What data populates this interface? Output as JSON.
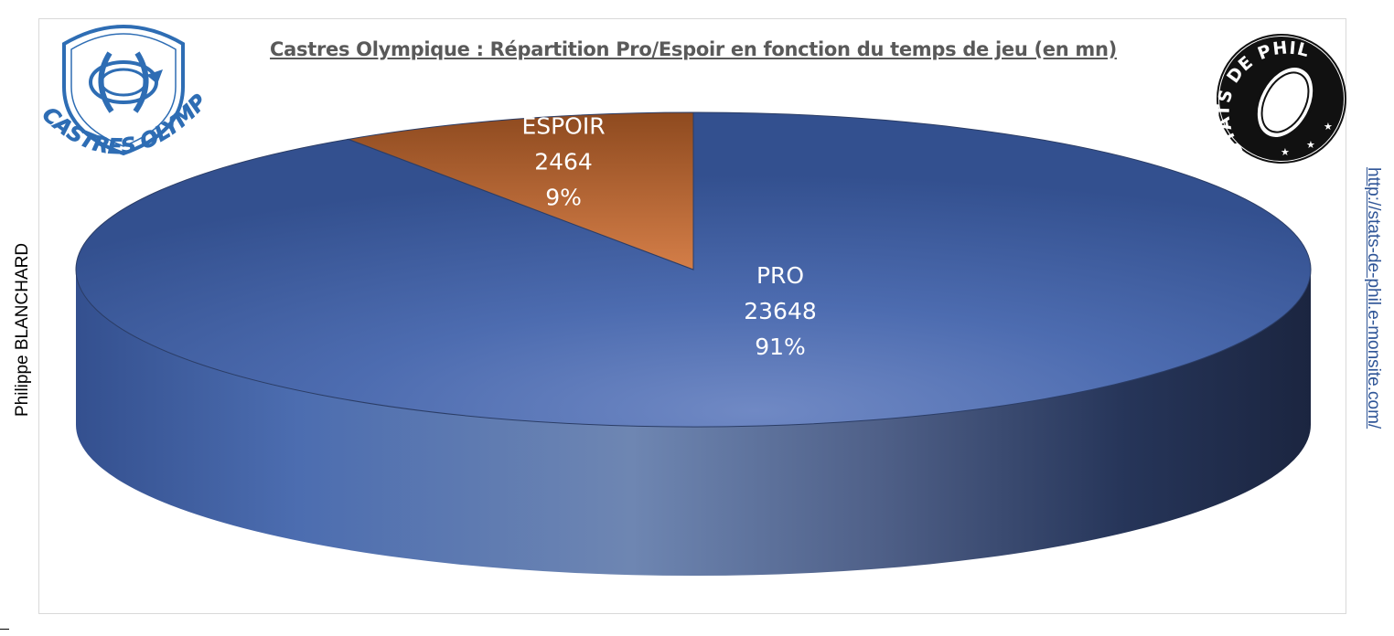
{
  "chart_data": {
    "type": "pie",
    "title": "Castres Olympique : Répartition Pro/Espoir en fonction du temps de jeu (en mn)",
    "slices": [
      {
        "name": "PRO",
        "value": 23648,
        "percent": "91%",
        "color": "#4a69ad"
      },
      {
        "name": "ESPOIR",
        "value": 2464,
        "percent": "9%",
        "color": "#c8703a"
      }
    ],
    "legend": "none"
  },
  "author": "Philippe BLANCHARD",
  "url": "http://stats-de-phil.e-monsite.com/",
  "logos": {
    "left": {
      "icon": "castres-olympique-shield-logo",
      "text": "CASTRES OLYMPIQUE",
      "color": "#2e6db4"
    },
    "right": {
      "icon": "stats-de-phil-rugby-ball-logo",
      "text": "STATS DE PHIL"
    }
  }
}
